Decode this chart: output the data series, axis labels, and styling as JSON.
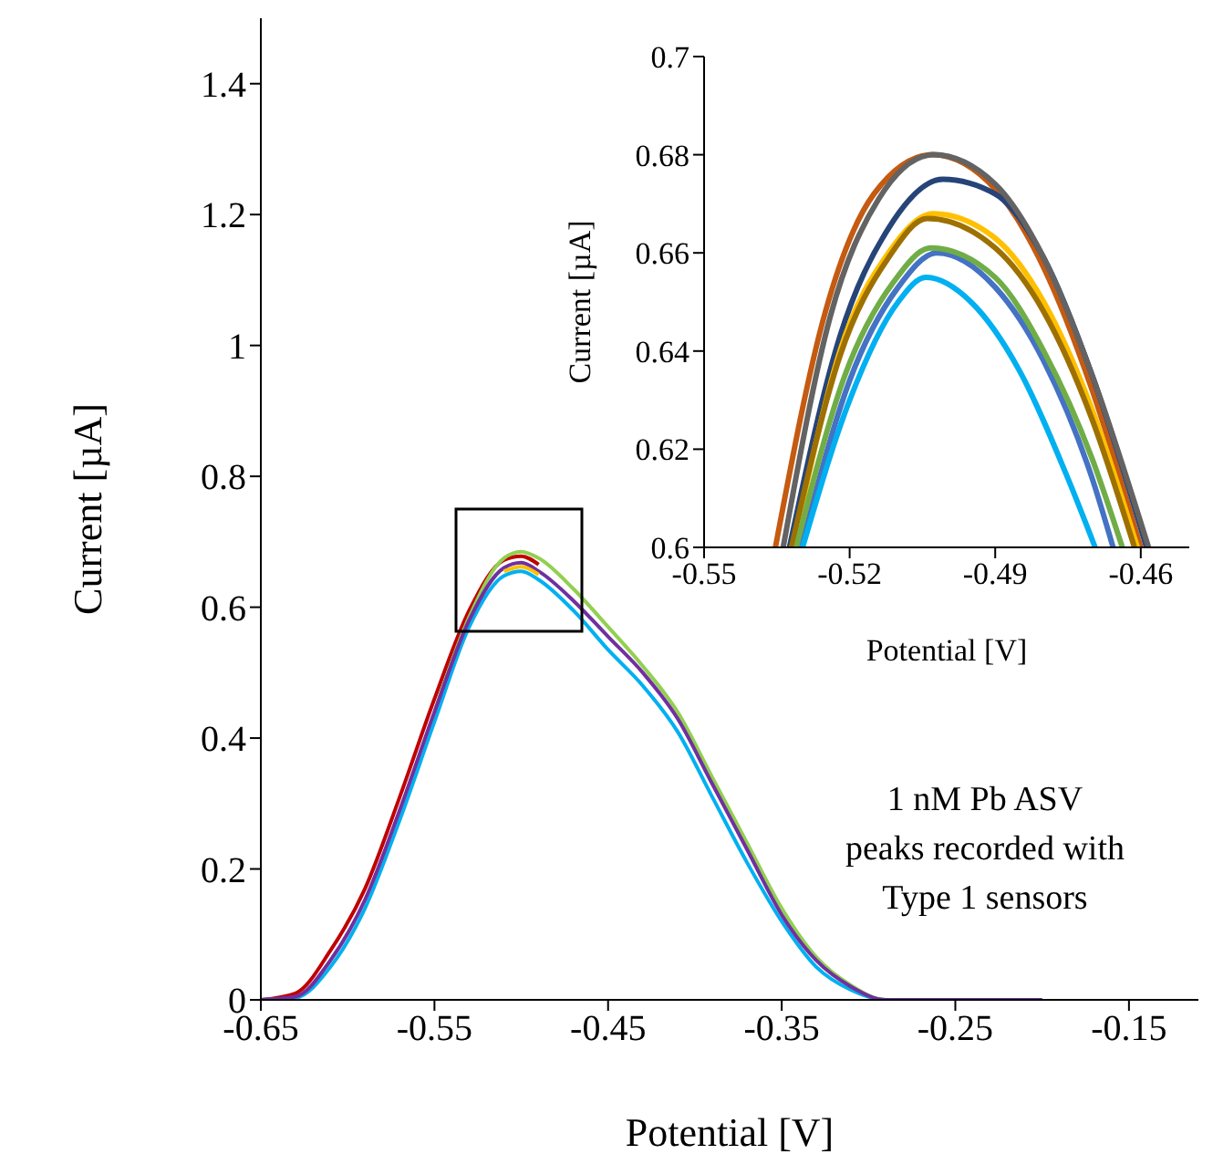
{
  "chart_data": [
    {
      "type": "line",
      "xlabel": "Potential [V]",
      "ylabel": "Current [µA]",
      "xlim": [
        -0.65,
        -0.11
      ],
      "ylim": [
        0,
        1.5
      ],
      "xticks": [
        -0.65,
        -0.55,
        -0.45,
        -0.35,
        -0.25,
        -0.15
      ],
      "yticks": [
        0,
        0.2,
        0.4,
        0.6,
        0.8,
        1,
        1.2,
        1.4
      ],
      "marker": "none",
      "line_style": "solid",
      "annotations": [
        "1 nM Pb ASV\npeaks recorded with\nType 1 sensors"
      ],
      "x": [
        -0.65,
        -0.63,
        -0.61,
        -0.59,
        -0.57,
        -0.55,
        -0.53,
        -0.51,
        -0.5,
        -0.49,
        -0.47,
        -0.45,
        -0.43,
        -0.41,
        -0.39,
        -0.37,
        -0.35,
        -0.33,
        -0.31,
        -0.29,
        -0.25,
        -0.2
      ],
      "series": [
        {
          "color": "#c00000",
          "values": [
            0,
            0.01,
            0.075,
            0.17,
            0.31,
            0.46,
            0.595,
            0.672,
            0.678,
            0.665,
            null,
            null,
            null,
            null,
            null,
            null,
            null,
            null,
            null,
            null,
            null,
            null
          ]
        },
        {
          "color": "#92d050",
          "values": [
            null,
            null,
            null,
            null,
            null,
            0.44,
            0.585,
            0.675,
            0.685,
            0.675,
            0.628,
            0.57,
            0.51,
            0.44,
            0.34,
            0.24,
            0.14,
            0.065,
            0.022,
            0,
            0,
            0
          ]
        },
        {
          "color": "#00b0f0",
          "values": [
            0,
            0.003,
            0.05,
            0.14,
            0.275,
            0.425,
            0.57,
            0.648,
            0.655,
            0.642,
            0.595,
            0.535,
            0.48,
            0.41,
            0.31,
            0.21,
            0.12,
            0.05,
            0.015,
            0,
            0,
            0
          ]
        },
        {
          "color": "#7030a0",
          "values": [
            0,
            0.005,
            0.06,
            0.153,
            0.29,
            0.44,
            0.58,
            0.66,
            0.668,
            0.655,
            0.61,
            0.555,
            0.5,
            0.43,
            0.33,
            0.23,
            0.13,
            0.06,
            0.02,
            0,
            0,
            0
          ]
        },
        {
          "color": "#ffc000",
          "values": [
            null,
            null,
            null,
            null,
            null,
            null,
            null,
            0.655,
            0.662,
            0.65,
            null,
            null,
            null,
            null,
            null,
            null,
            null,
            null,
            null,
            null,
            null,
            null
          ]
        }
      ]
    },
    {
      "type": "line",
      "xlabel": "Potential [V]",
      "ylabel": "Current [µA]",
      "xlim": [
        -0.55,
        -0.45
      ],
      "ylim": [
        0.6,
        0.7
      ],
      "xticks": [
        -0.55,
        -0.52,
        -0.49,
        -0.46
      ],
      "yticks": [
        0.6,
        0.62,
        0.64,
        0.66,
        0.68,
        0.7
      ],
      "marker": "none",
      "line_style": "solid",
      "series": [
        {
          "color": "#c55a11",
          "x": [
            -0.5353,
            -0.525,
            -0.515,
            -0.503,
            -0.49,
            -0.48,
            -0.47,
            -0.46
          ],
          "values": [
            0.6,
            0.648,
            0.672,
            0.68,
            0.673,
            0.657,
            0.632,
            0.6
          ]
        },
        {
          "color": "#264478",
          "x": [
            -0.5324,
            -0.522,
            -0.512,
            -0.5008,
            -0.49,
            -0.48,
            -0.47,
            -0.4588
          ],
          "values": [
            0.6,
            0.643,
            0.665,
            0.675,
            0.672,
            0.659,
            0.635,
            0.6
          ]
        },
        {
          "color": "#ffc000",
          "x": [
            -0.5316,
            -0.522,
            -0.512,
            -0.5027,
            -0.49,
            -0.48,
            -0.47,
            -0.4607
          ],
          "values": [
            0.6,
            0.64,
            0.66,
            0.668,
            0.663,
            0.65,
            0.628,
            0.6
          ]
        },
        {
          "color": "#9e7000",
          "x": [
            -0.532,
            -0.522,
            -0.512,
            -0.504,
            -0.49,
            -0.48,
            -0.47,
            -0.4613
          ],
          "values": [
            0.6,
            0.639,
            0.659,
            0.667,
            0.661,
            0.648,
            0.626,
            0.6
          ]
        },
        {
          "color": "#4472c4",
          "x": [
            -0.53,
            -0.52,
            -0.51,
            -0.502,
            -0.49,
            -0.48,
            -0.47,
            -0.4657
          ],
          "values": [
            0.6,
            0.634,
            0.653,
            0.66,
            0.653,
            0.638,
            0.614,
            0.6
          ]
        },
        {
          "color": "#70ad47",
          "x": [
            -0.531,
            -0.521,
            -0.511,
            -0.5033,
            -0.49,
            -0.48,
            -0.47,
            -0.4638
          ],
          "values": [
            0.6,
            0.635,
            0.654,
            0.661,
            0.655,
            0.64,
            0.618,
            0.6
          ]
        },
        {
          "color": "#00b0f0",
          "x": [
            -0.5297,
            -0.52,
            -0.51,
            -0.5043,
            -0.495,
            -0.485,
            -0.475,
            -0.4694
          ],
          "values": [
            0.6,
            0.63,
            0.65,
            0.655,
            0.65,
            0.636,
            0.614,
            0.6
          ]
        },
        {
          "color": "#636363",
          "x": [
            -0.5337,
            -0.524,
            -0.514,
            -0.5027,
            -0.49,
            -0.48,
            -0.47,
            -0.4584
          ],
          "values": [
            0.6,
            0.647,
            0.671,
            0.68,
            0.674,
            0.659,
            0.635,
            0.6
          ]
        }
      ]
    }
  ]
}
